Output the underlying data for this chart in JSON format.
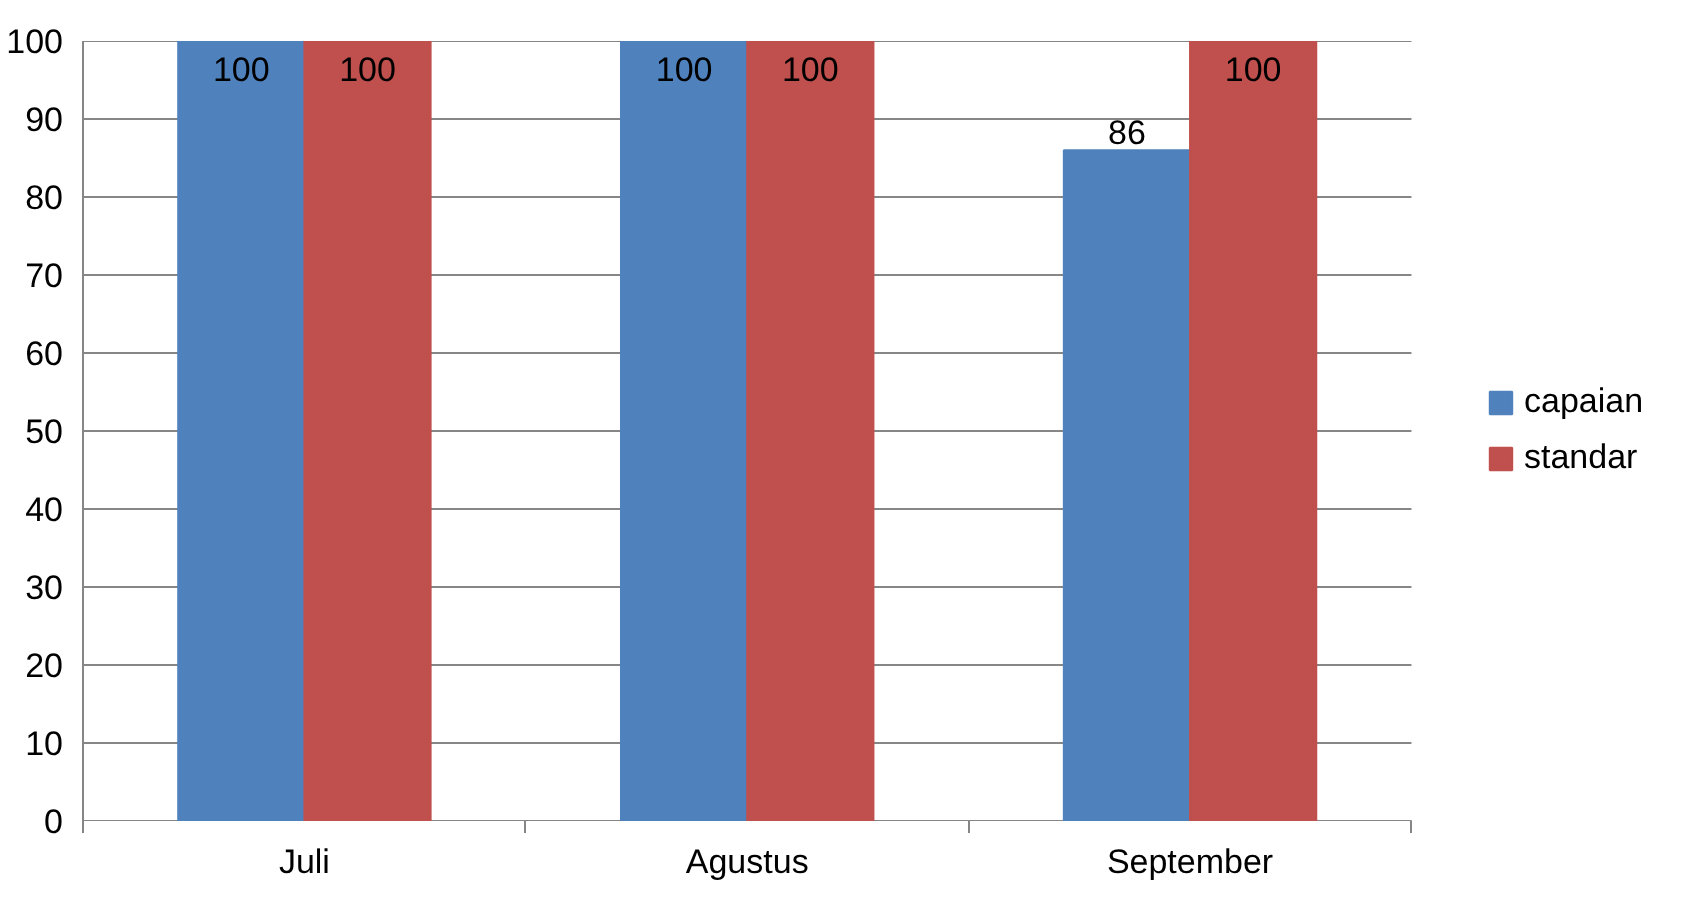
{
  "chart_data": {
    "type": "bar",
    "categories": [
      "Juli",
      "Agustus",
      "September"
    ],
    "series": [
      {
        "name": "capaian",
        "color": "#4f81bd",
        "values": [
          100,
          100,
          86
        ]
      },
      {
        "name": "standar",
        "color": "#c0504d",
        "values": [
          100,
          100,
          100
        ]
      }
    ],
    "ylim": [
      0,
      100
    ],
    "yticks": [
      0,
      10,
      20,
      30,
      40,
      50,
      60,
      70,
      80,
      90,
      100
    ],
    "grid": "y",
    "legend": "right",
    "data_labels": true
  }
}
